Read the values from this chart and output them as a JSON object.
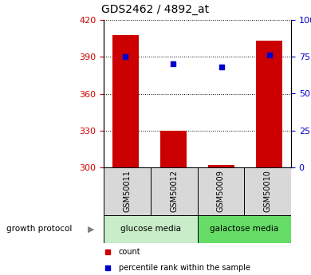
{
  "title": "GDS2462 / 4892_at",
  "samples": [
    "GSM50011",
    "GSM50012",
    "GSM50009",
    "GSM50010"
  ],
  "bar_values": [
    408,
    330,
    302,
    403
  ],
  "percentile_values": [
    75,
    70,
    68,
    76
  ],
  "ylim_left": [
    300,
    420
  ],
  "ylim_right": [
    0,
    100
  ],
  "yticks_left": [
    300,
    330,
    360,
    390,
    420
  ],
  "yticks_right": [
    0,
    25,
    50,
    75,
    100
  ],
  "ytick_right_labels": [
    "0",
    "25",
    "50",
    "75",
    "100%"
  ],
  "bar_color": "#cc0000",
  "dot_color": "#0000cc",
  "bar_width": 0.55,
  "groups": [
    {
      "label": "glucose media",
      "samples": [
        0,
        1
      ],
      "color": "#c8edc8"
    },
    {
      "label": "galactose media",
      "samples": [
        2,
        3
      ],
      "color": "#66dd66"
    }
  ],
  "group_protocol_label": "growth protocol",
  "legend_count_label": "count",
  "legend_percentile_label": "percentile rank within the sample",
  "background_color": "#ffffff",
  "left_tick_color": "#cc0000",
  "right_tick_color": "#0000cc",
  "label_bg_color": "#d8d8d8",
  "figsize": [
    3.9,
    3.45
  ],
  "dpi": 100
}
